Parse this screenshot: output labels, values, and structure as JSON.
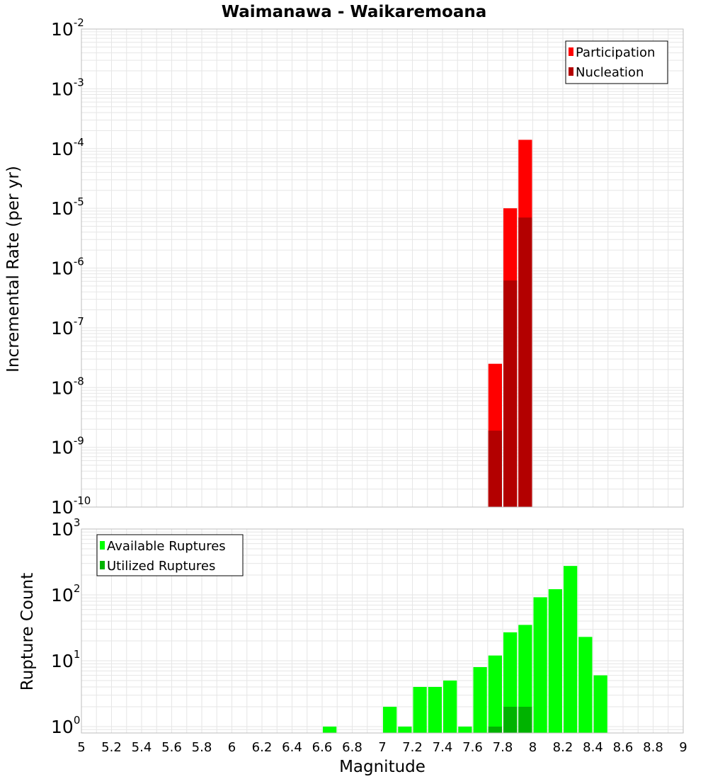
{
  "chart_data": [
    {
      "type": "bar",
      "title": "Waimanawa - Waikaremoana",
      "ylabel": "Incremental Rate (per yr)",
      "xlabel": "",
      "yscale": "log",
      "ylim": [
        1e-10,
        0.01
      ],
      "xlim": [
        5,
        9
      ],
      "y_tick_exponents": [
        -10,
        -9,
        -8,
        -7,
        -6,
        -5,
        -4,
        -3,
        -2
      ],
      "bin_width": 0.1,
      "legend": {
        "placement": "top-right",
        "entries": [
          "Participation",
          "Nucleation"
        ]
      },
      "grid": true,
      "series": [
        {
          "name": "Participation",
          "color": "#ff0000",
          "x": [
            7.75,
            7.85,
            7.95
          ],
          "values": [
            2.5e-08,
            1e-05,
            0.00014
          ]
        },
        {
          "name": "Nucleation",
          "color": "#b30000",
          "x": [
            7.75,
            7.85,
            7.95
          ],
          "values": [
            1.9e-09,
            6.2e-07,
            7e-06
          ]
        }
      ]
    },
    {
      "type": "bar",
      "title": "",
      "ylabel": "Rupture Count",
      "xlabel": "Magnitude",
      "yscale": "log",
      "ylim": [
        0.8,
        1000
      ],
      "xlim": [
        5,
        9
      ],
      "y_tick_exponents": [
        0,
        1,
        2,
        3
      ],
      "x_ticks": [
        "5",
        "5.2",
        "5.4",
        "5.6",
        "5.8",
        "6",
        "6.2",
        "6.4",
        "6.6",
        "6.8",
        "7",
        "7.2",
        "7.4",
        "7.6",
        "7.8",
        "8",
        "8.2",
        "8.4",
        "8.6",
        "8.8",
        "9"
      ],
      "bin_width": 0.1,
      "legend": {
        "placement": "top-left",
        "entries": [
          "Available Ruptures",
          "Utilized Ruptures"
        ]
      },
      "grid": true,
      "series": [
        {
          "name": "Available Ruptures",
          "color": "#00ff00",
          "x": [
            6.65,
            7.05,
            7.15,
            7.25,
            7.35,
            7.45,
            7.55,
            7.65,
            7.75,
            7.85,
            7.95,
            8.05,
            8.15,
            8.25,
            8.35,
            8.45
          ],
          "values": [
            1,
            2,
            1,
            4,
            4,
            5,
            1,
            8,
            12,
            27,
            35,
            92,
            122,
            275,
            23,
            6
          ]
        },
        {
          "name": "Utilized Ruptures",
          "color": "#00b300",
          "x": [
            7.75,
            7.85,
            7.95
          ],
          "values": [
            1,
            2,
            2
          ]
        }
      ]
    }
  ]
}
